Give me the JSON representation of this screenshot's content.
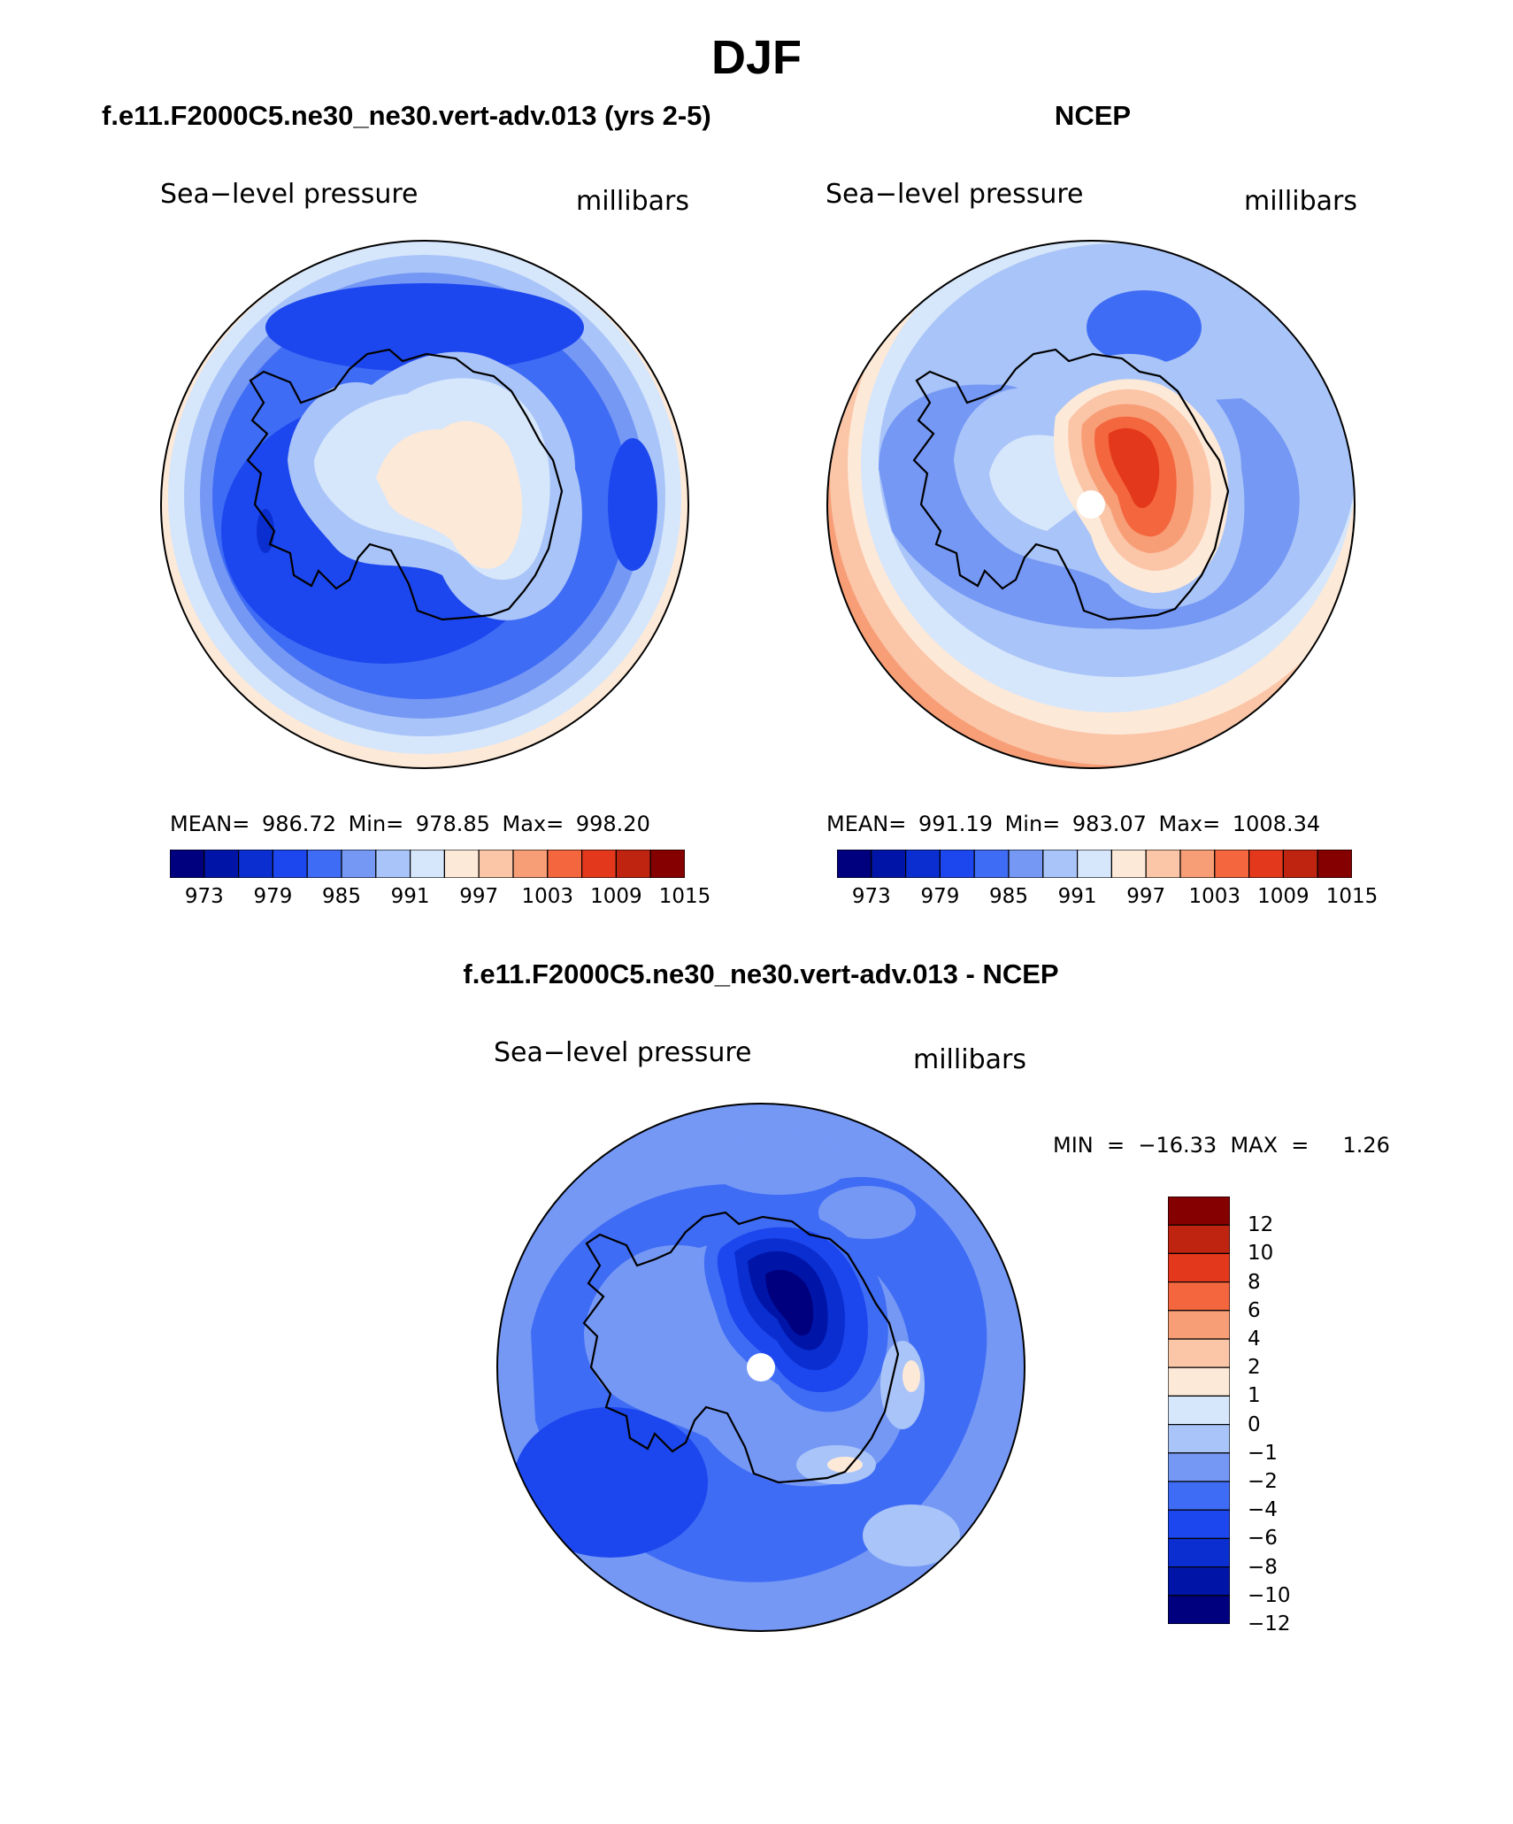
{
  "page": {
    "title": "DJF"
  },
  "panels": {
    "model": {
      "title": "f.e11.F2000C5.ne30_ne30.vert-adv.013 (yrs 2-5)",
      "variable": "Sea−level pressure",
      "units": "millibars",
      "stats": "MEAN=  986.72   Min=  978.85   Max=  998.20"
    },
    "obs": {
      "title": "NCEP",
      "variable": "Sea−level pressure",
      "units": "millibars",
      "stats": "MEAN=  991.19   Min=  983.07   Max=  1008.34"
    },
    "diff": {
      "title": "f.e11.F2000C5.ne30_ne30.vert-adv.013 - NCEP",
      "variable": "Sea−level pressure",
      "units": "millibars",
      "stats": "MIN  =  −16.33  MAX  =     1.26"
    }
  },
  "colorbars": {
    "absolute": {
      "colors": [
        "#00007f",
        "#0015a8",
        "#0a2ed0",
        "#1d47ee",
        "#3f6cf5",
        "#7598f5",
        "#a9c4f8",
        "#d6e6fb",
        "#fde9d8",
        "#fbc5a7",
        "#f79e77",
        "#f3663e",
        "#e4381c",
        "#bf2410",
        "#850000"
      ],
      "labels": [
        "973",
        "979",
        "985",
        "991",
        "997",
        "1003",
        "1009",
        "1015"
      ]
    },
    "difference": {
      "colors": [
        "#850000",
        "#bf2410",
        "#e4381c",
        "#f3663e",
        "#f79e77",
        "#fbc5a7",
        "#fde9d8",
        "#d6e6fb",
        "#a9c4f8",
        "#7598f5",
        "#3f6cf5",
        "#1d47ee",
        "#0a2ed0",
        "#0015a8",
        "#00007f"
      ],
      "labels": [
        "12",
        "10",
        "8",
        "6",
        "4",
        "2",
        "1",
        "0",
        "−1",
        "−2",
        "−4",
        "−6",
        "−8",
        "−10",
        "−12"
      ]
    }
  }
}
